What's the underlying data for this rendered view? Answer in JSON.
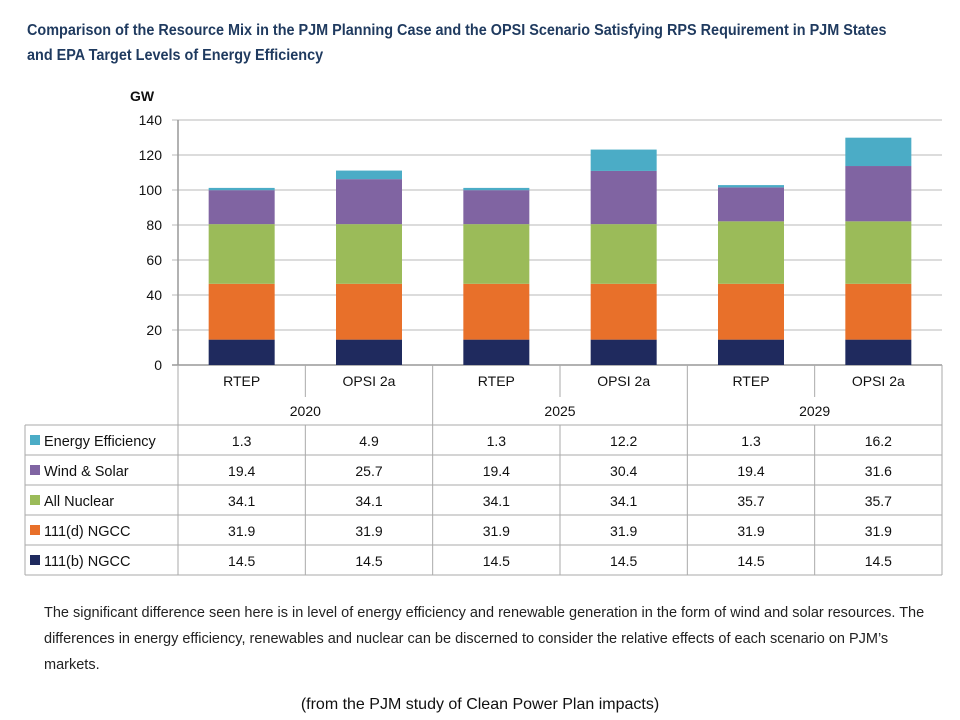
{
  "chart_data": {
    "type": "bar",
    "stacked": true,
    "title": "Comparison of the Resource Mix in the PJM Planning Case and the OPSI Scenario Satisfying RPS Requirement in PJM States and EPA Target Levels of Energy Efficiency",
    "ylabel": "GW",
    "ylim": [
      0,
      140
    ],
    "yticks": [
      0,
      20,
      40,
      60,
      80,
      100,
      120,
      140
    ],
    "grid": true,
    "legend": "table-left",
    "categories": [
      "RTEP",
      "OPSI 2a",
      "RTEP",
      "OPSI 2a",
      "RTEP",
      "OPSI 2a"
    ],
    "groups": [
      "2020",
      "2025",
      "2029"
    ],
    "series": [
      {
        "name": "111(b) NGCC",
        "color": "#1f2a5e",
        "values": [
          14.5,
          14.5,
          14.5,
          14.5,
          14.5,
          14.5
        ]
      },
      {
        "name": "111(d) NGCC",
        "color": "#e8702a",
        "values": [
          31.9,
          31.9,
          31.9,
          31.9,
          31.9,
          31.9
        ]
      },
      {
        "name": "All Nuclear",
        "color": "#9bbb59",
        "values": [
          34.1,
          34.1,
          34.1,
          34.1,
          35.7,
          35.7
        ]
      },
      {
        "name": "Wind & Solar",
        "color": "#8064a2",
        "values": [
          19.4,
          25.7,
          19.4,
          30.4,
          19.4,
          31.6
        ]
      },
      {
        "name": "Energy Efficiency",
        "color": "#4bacc6",
        "values": [
          1.3,
          4.9,
          1.3,
          12.2,
          1.3,
          16.2
        ]
      }
    ]
  },
  "note": "The significant difference seen here is in level of energy efficiency and renewable generation in the form of wind and solar resources. The differences in energy efficiency, renewables and nuclear can be discerned to consider the relative effects of each scenario on PJM’s markets.",
  "caption": "(from the PJM study of Clean Power Plan impacts)"
}
